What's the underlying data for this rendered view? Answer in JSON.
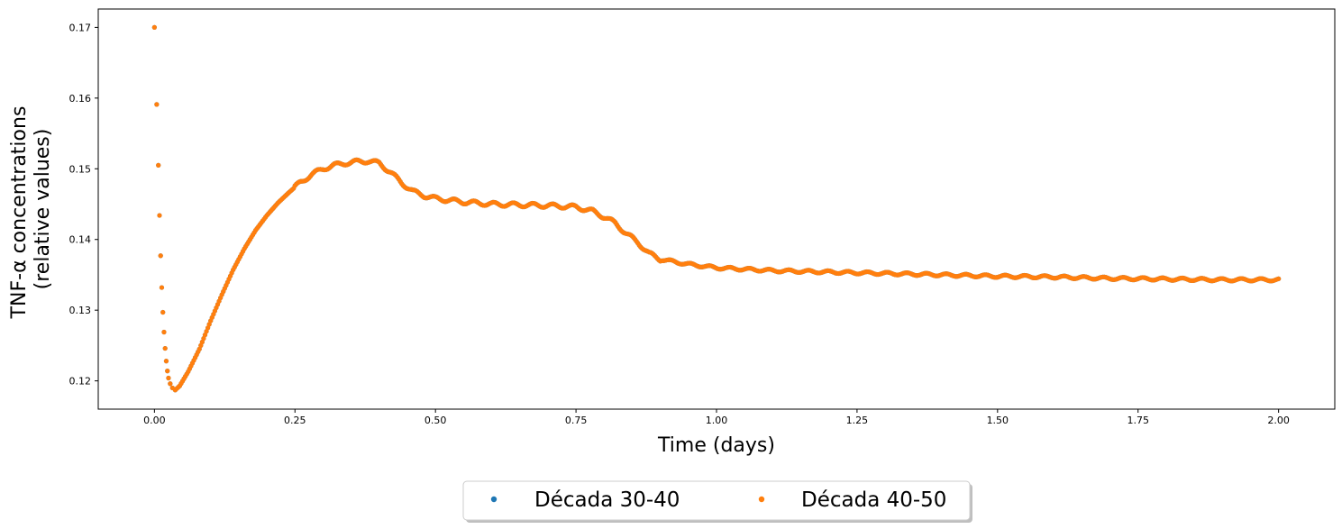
{
  "chart_data": {
    "type": "scatter",
    "title": "",
    "xlabel": "Time (days)",
    "ylabel_lines": [
      "TNF-α concentrations",
      "(relative values)"
    ],
    "xlim": [
      -0.1,
      2.1
    ],
    "ylim": [
      0.116,
      0.1726
    ],
    "xticks": [
      0.0,
      0.25,
      0.5,
      0.75,
      1.0,
      1.25,
      1.5,
      1.75,
      2.0
    ],
    "xtick_labels": [
      "0.00",
      "0.25",
      "0.50",
      "0.75",
      "1.00",
      "1.25",
      "1.50",
      "1.75",
      "2.00"
    ],
    "yticks": [
      0.12,
      0.13,
      0.14,
      0.15,
      0.16,
      0.17
    ],
    "ytick_labels": [
      "0.12",
      "0.13",
      "0.14",
      "0.15",
      "0.16",
      "0.17"
    ],
    "grid": false,
    "legend_position": "bottom-center, outside",
    "series": [
      {
        "name": "Década 30-40",
        "color": "#1f77b4",
        "note_points_hidden_under_next_series": true,
        "x": [
          0.0,
          0.004,
          0.007,
          0.009,
          0.011,
          0.013,
          0.015,
          0.017,
          0.019,
          0.021,
          0.023,
          0.025,
          0.028,
          0.032,
          0.037,
          0.045,
          0.06,
          0.08,
          0.1,
          0.12,
          0.14,
          0.16,
          0.18,
          0.2,
          0.22,
          0.24,
          0.26,
          0.28,
          0.3,
          0.32,
          0.34,
          0.36,
          0.38,
          0.4,
          0.42,
          0.44,
          0.46,
          0.48,
          0.5,
          0.55,
          0.6,
          0.65,
          0.7,
          0.75,
          0.78,
          0.8,
          0.82,
          0.84,
          0.86,
          0.88,
          0.9,
          0.95,
          1.0,
          1.05,
          1.1,
          1.2,
          1.3,
          1.4,
          1.5,
          1.6,
          1.7,
          1.8,
          1.9,
          2.0
        ],
        "y": [
          0.17,
          0.1591,
          0.1505,
          0.1434,
          0.1377,
          0.1332,
          0.1297,
          0.1269,
          0.1246,
          0.1228,
          0.1214,
          0.1204,
          0.1196,
          0.119,
          0.1187,
          0.1193,
          0.1213,
          0.1245,
          0.1285,
          0.1322,
          0.1357,
          0.1387,
          0.1413,
          0.1434,
          0.1452,
          0.1467,
          0.1481,
          0.1492,
          0.15,
          0.1505,
          0.1508,
          0.151,
          0.1511,
          0.1508,
          0.1495,
          0.148,
          0.1468,
          0.1462,
          0.1458,
          0.1453,
          0.145,
          0.1449,
          0.1448,
          0.1446,
          0.144,
          0.1432,
          0.1423,
          0.1408,
          0.1396,
          0.138,
          0.1372,
          0.1365,
          0.136,
          0.1358,
          0.1356,
          0.1354,
          0.1352,
          0.135,
          0.1348,
          0.1347,
          0.1345,
          0.1344,
          0.1343,
          0.1343
        ]
      },
      {
        "name": "Década 40-50",
        "color": "#ff7f0e",
        "x": [
          0.0,
          0.004,
          0.007,
          0.009,
          0.011,
          0.013,
          0.015,
          0.017,
          0.019,
          0.021,
          0.023,
          0.025,
          0.028,
          0.032,
          0.037,
          0.045,
          0.06,
          0.08,
          0.1,
          0.12,
          0.14,
          0.16,
          0.18,
          0.2,
          0.22,
          0.24,
          0.26,
          0.28,
          0.3,
          0.32,
          0.34,
          0.36,
          0.38,
          0.4,
          0.42,
          0.44,
          0.46,
          0.48,
          0.5,
          0.55,
          0.6,
          0.65,
          0.7,
          0.75,
          0.78,
          0.8,
          0.82,
          0.84,
          0.86,
          0.88,
          0.9,
          0.95,
          1.0,
          1.05,
          1.1,
          1.2,
          1.3,
          1.4,
          1.5,
          1.6,
          1.7,
          1.8,
          1.9,
          2.0
        ],
        "y": [
          0.17,
          0.1591,
          0.1505,
          0.1434,
          0.1377,
          0.1332,
          0.1297,
          0.1269,
          0.1246,
          0.1228,
          0.1214,
          0.1204,
          0.1196,
          0.119,
          0.1187,
          0.1193,
          0.1213,
          0.1245,
          0.1285,
          0.1322,
          0.1357,
          0.1387,
          0.1413,
          0.1434,
          0.1452,
          0.1467,
          0.1481,
          0.1492,
          0.15,
          0.1505,
          0.1508,
          0.151,
          0.1511,
          0.1508,
          0.1495,
          0.148,
          0.1468,
          0.1462,
          0.1458,
          0.1453,
          0.145,
          0.1449,
          0.1448,
          0.1446,
          0.144,
          0.1432,
          0.1423,
          0.1408,
          0.1396,
          0.138,
          0.1372,
          0.1365,
          0.136,
          0.1358,
          0.1356,
          0.1354,
          0.1352,
          0.135,
          0.1348,
          0.1347,
          0.1345,
          0.1344,
          0.1343,
          0.1343
        ]
      }
    ]
  }
}
